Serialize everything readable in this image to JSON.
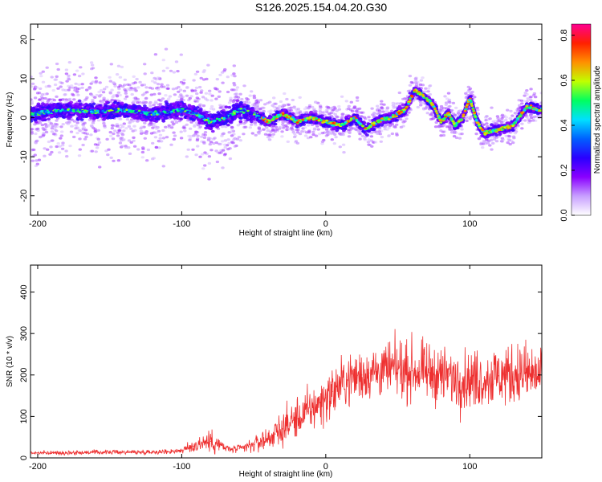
{
  "chart_data": [
    {
      "type": "heatmap",
      "title": "S126.2025.154.04.20.G30",
      "xlabel": "Height of straight line (km)",
      "ylabel": "Frequency (Hz)",
      "xlim": [
        -205,
        150
      ],
      "ylim": [
        -25,
        24
      ],
      "xticks": [
        -200,
        -100,
        0,
        100
      ],
      "yticks": [
        -20,
        -10,
        0,
        10,
        20
      ],
      "colorbar": {
        "label": "Normalized spectral amplitude",
        "range": [
          0,
          0.85
        ],
        "ticks": [
          "0.0",
          "0.2",
          "0.4",
          "0.6",
          "0.8"
        ],
        "colormap": [
          "#ffffff",
          "#c8a0ff",
          "#8a00ff",
          "#2a00ff",
          "#0060ff",
          "#00e0ff",
          "#00ff60",
          "#c0ff00",
          "#ff9000",
          "#ff2000",
          "#ff0090"
        ]
      },
      "ridge": {
        "x": [
          -205,
          -180,
          -160,
          -140,
          -120,
          -100,
          -90,
          -80,
          -70,
          -60,
          -50,
          -40,
          -30,
          -20,
          -10,
          0,
          10,
          20,
          28,
          35,
          45,
          55,
          62,
          70,
          75,
          80,
          85,
          90,
          95,
          100,
          105,
          110,
          120,
          130,
          140,
          148
        ],
        "y": [
          1,
          2,
          1.5,
          2,
          1,
          2,
          1,
          -1,
          0,
          2,
          1,
          -1,
          1,
          -1,
          0,
          -1,
          -2,
          0,
          -3,
          -1,
          0,
          2,
          7,
          5,
          3,
          -1,
          1,
          -2,
          0,
          5,
          -1,
          -4,
          -3,
          -2,
          3,
          2
        ]
      }
    },
    {
      "type": "line",
      "xlabel": "Height of straight line (km)",
      "ylabel": "SNR (10 * v/v)",
      "xlim": [
        -205,
        150
      ],
      "ylim": [
        0,
        465
      ],
      "xticks": [
        -200,
        -100,
        0,
        100
      ],
      "yticks": [
        0,
        100,
        200,
        300,
        400
      ],
      "series": [
        {
          "color": "#ee3030",
          "x": [
            -205,
            -190,
            -170,
            -150,
            -130,
            -110,
            -100,
            -92,
            -85,
            -80,
            -75,
            -70,
            -65,
            -60,
            -55,
            -50,
            -45,
            -40,
            -35,
            -30,
            -25,
            -20,
            -15,
            -10,
            -5,
            0,
            5,
            10,
            15,
            20,
            25,
            30,
            35,
            40,
            45,
            50,
            55,
            60,
            65,
            70,
            75,
            80,
            85,
            90,
            95,
            100,
            105,
            110,
            115,
            120,
            125,
            130,
            135,
            140,
            145,
            150
          ],
          "y": [
            12,
            12,
            13,
            14,
            14,
            15,
            18,
            28,
            38,
            40,
            34,
            24,
            20,
            22,
            26,
            32,
            40,
            48,
            58,
            70,
            85,
            95,
            105,
            118,
            130,
            145,
            160,
            175,
            188,
            195,
            200,
            205,
            208,
            210,
            212,
            214,
            212,
            210,
            208,
            206,
            204,
            200,
            196,
            192,
            190,
            188,
            190,
            192,
            195,
            198,
            200,
            202,
            204,
            202,
            200,
            198
          ],
          "spread": [
            5,
            5,
            6,
            6,
            6,
            7,
            8,
            20,
            30,
            32,
            26,
            14,
            10,
            12,
            16,
            22,
            28,
            34,
            40,
            48,
            52,
            56,
            60,
            62,
            64,
            66,
            68,
            70,
            72,
            72,
            72,
            74,
            74,
            76,
            76,
            78,
            78,
            78,
            78,
            78,
            78,
            78,
            78,
            80,
            80,
            80,
            80,
            82,
            82,
            84,
            86,
            86,
            86,
            86,
            86,
            86
          ]
        }
      ]
    }
  ]
}
